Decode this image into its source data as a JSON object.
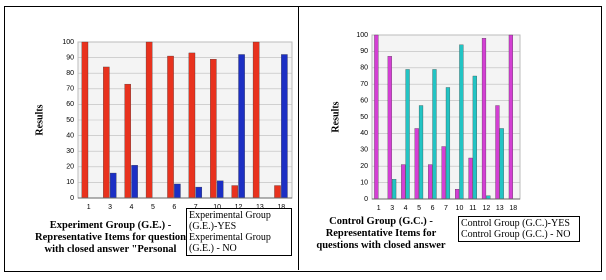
{
  "chart_data": [
    {
      "type": "bar",
      "y_label": "Results",
      "title": "Experiment Group (G.E.) - Representative Items for question with closed answer \"Personal",
      "categories": [
        "1",
        "3",
        "4",
        "5",
        "6",
        "7",
        "10",
        "12",
        "13",
        "18"
      ],
      "series": [
        {
          "name": "Experimental Group (G.E.)-YES",
          "color": "#e8321e",
          "values": [
            100,
            84,
            73,
            100,
            91,
            93,
            89,
            8,
            100,
            8
          ]
        },
        {
          "name": "Experimental Group (G.E.) - NO",
          "color": "#1c2fc4",
          "values": [
            0,
            16,
            21,
            0,
            9,
            7,
            11,
            92,
            0,
            92
          ]
        }
      ],
      "ylim": [
        0,
        100
      ],
      "yticks": [
        0,
        10,
        20,
        30,
        40,
        50,
        60,
        70,
        80,
        90,
        100
      ]
    },
    {
      "type": "bar",
      "y_label": "Results",
      "title": "Control Group (G.C.) -Representative Items for questions with closed answer",
      "categories": [
        "1",
        "3",
        "4",
        "5",
        "6",
        "7",
        "10",
        "11",
        "12",
        "13",
        "18"
      ],
      "series": [
        {
          "name": "Control Group (G.C.)-YES",
          "color": "#d43fd4",
          "values": [
            100,
            87,
            21,
            43,
            21,
            32,
            6,
            25,
            98,
            57,
            100
          ]
        },
        {
          "name": "Control Group (G.C.) - NO",
          "color": "#22c4c4",
          "values": [
            0,
            12,
            79,
            57,
            79,
            68,
            94,
            75,
            2,
            43,
            0
          ]
        }
      ],
      "ylim": [
        0,
        100
      ],
      "yticks": [
        0,
        10,
        20,
        30,
        40,
        50,
        60,
        70,
        80,
        90,
        100
      ]
    }
  ]
}
